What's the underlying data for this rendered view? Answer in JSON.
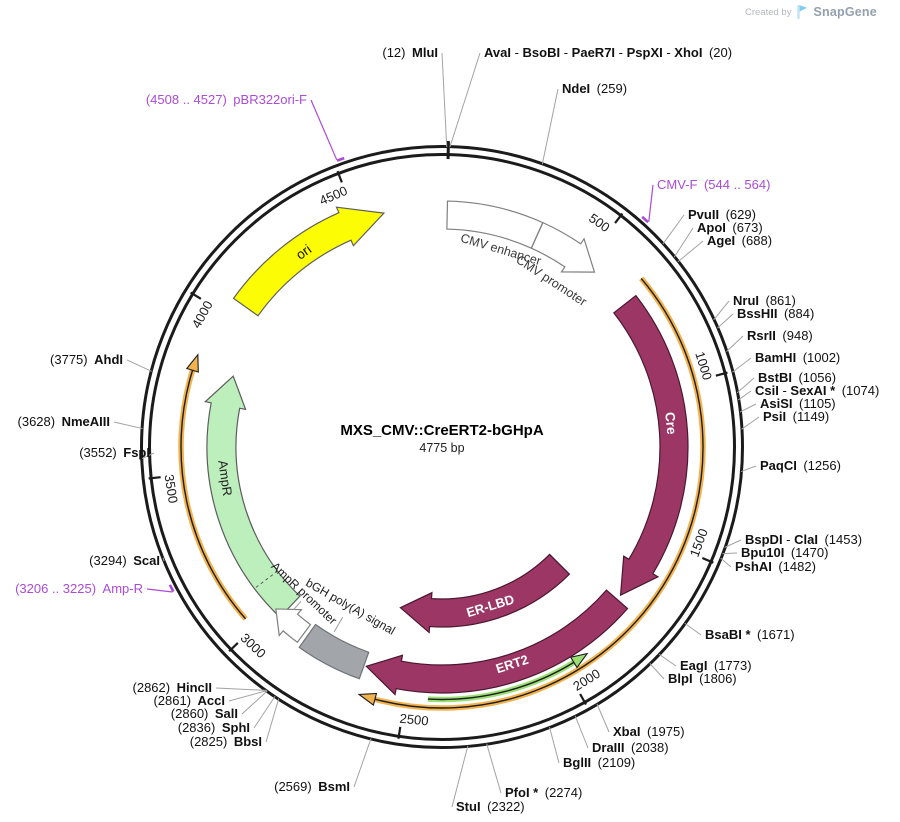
{
  "watermark": {
    "created_by": "Created by",
    "brand": "SnapGene"
  },
  "plasmid": {
    "name": "MXS_CMV::CreERT2-bGHpA",
    "size_label": "4775 bp"
  },
  "chart_data": {
    "type": "plasmid_map",
    "title": "MXS_CMV::CreERT2-bGHpA",
    "size_label": "4775 bp",
    "length_bp": 4775,
    "tick_interval": 500,
    "ticks": [
      500,
      1000,
      1500,
      2000,
      2500,
      3000,
      3500,
      4000,
      4500
    ],
    "colors": {
      "backbone": "#1b1b1b",
      "cds": "#9C3665",
      "cds_outline": "#4A1830",
      "ampr_fill": "#BDEFBD",
      "ori_fill": "#FCFC04",
      "polya_fill": "#A2A6AA",
      "white_feature": "#ffffff",
      "orf_orange": "#F2B24E",
      "orf_green": "#9BDF74",
      "primer_purple": "#AB4BD6",
      "leader_gray": "#a3a3a3"
    },
    "features": [
      {
        "id": "cmv-enhancer",
        "label": "CMV enhancer",
        "start": 17,
        "end": 321,
        "type": "enhancer",
        "fill": "#ffffff",
        "direction": "cw"
      },
      {
        "id": "cmv-promoter",
        "label": "CMV promoter",
        "start": 321,
        "end": 545,
        "type": "promoter",
        "fill": "#ffffff",
        "direction": "cw"
      },
      {
        "id": "cre",
        "label": "Cre",
        "start": 690,
        "end": 1720,
        "type": "CDS",
        "fill": "#9C3665",
        "direction": "cw"
      },
      {
        "id": "ert2",
        "label": "ERT2",
        "start": 1738,
        "end": 2640,
        "type": "CDS",
        "fill": "#9C3665",
        "direction": "cw"
      },
      {
        "id": "er-lbd",
        "label": "ER-LBD",
        "start": 1790,
        "end": 2580,
        "type": "domain",
        "fill": "#9C3665",
        "direction": "cw"
      },
      {
        "id": "bgh-polya",
        "label": "bGH poly(A) signal",
        "start": 2648,
        "end": 2858,
        "type": "polyA_signal",
        "fill": "#A2A6AA",
        "direction": "none"
      },
      {
        "id": "ampr-promoter",
        "label": "AmpR promoter",
        "start": 2872,
        "end": 2994,
        "type": "promoter",
        "fill": "#ffffff",
        "direction": "cw"
      },
      {
        "id": "ampr",
        "label": "AmpR",
        "start": 2966,
        "end": 3830,
        "type": "CDS",
        "fill": "#BDEFBD",
        "direction": "cw"
      },
      {
        "id": "ori",
        "label": "ori",
        "start": 4052,
        "end": 4590,
        "type": "rep_origin",
        "fill": "#FCFC04",
        "direction": "cw"
      }
    ],
    "orf_arrows": [
      {
        "start": 660,
        "end": 2585,
        "direction": "cw",
        "color": "#F2B24E"
      },
      {
        "start": 3035,
        "end": 3808,
        "direction": "cw",
        "color": "#F2B24E"
      },
      {
        "start": 1970,
        "end": 2430,
        "direction": "ccw",
        "color": "#9BDF74"
      }
    ],
    "primers": [
      {
        "name": "CMV-F",
        "start": 544,
        "end": 564,
        "range_label": "544 .. 564",
        "format": "name-first"
      },
      {
        "name": "Amp-R",
        "start": 3206,
        "end": 3225,
        "range_label": "3206 .. 3225",
        "format": "pos-first"
      },
      {
        "name": "pBR322ori-F",
        "start": 4508,
        "end": 4527,
        "range_label": "4508 .. 4527",
        "format": "pos-first"
      }
    ],
    "enzymes": [
      {
        "names": [
          "MluI"
        ],
        "pos": 12,
        "format": "pos-first"
      },
      {
        "names": [
          "AvaI",
          "BsoBI",
          "PaeR7I",
          "PspXI",
          "XhoI"
        ],
        "pos": 20,
        "format": "name-first"
      },
      {
        "names": [
          "NdeI"
        ],
        "pos": 259,
        "format": "name-first"
      },
      {
        "names": [
          "PvuII"
        ],
        "pos": 629,
        "format": "name-first"
      },
      {
        "names": [
          "ApoI"
        ],
        "pos": 673,
        "format": "name-first"
      },
      {
        "names": [
          "AgeI"
        ],
        "pos": 688,
        "format": "name-first"
      },
      {
        "names": [
          "NruI"
        ],
        "pos": 861,
        "format": "name-first"
      },
      {
        "names": [
          "BssHII"
        ],
        "pos": 884,
        "format": "name-first"
      },
      {
        "names": [
          "RsrII"
        ],
        "pos": 948,
        "format": "name-first"
      },
      {
        "names": [
          "BamHI"
        ],
        "pos": 1002,
        "format": "name-first"
      },
      {
        "names": [
          "BstBI"
        ],
        "pos": 1056,
        "format": "name-first"
      },
      {
        "names": [
          "CsiI",
          "SexAI *"
        ],
        "pos": 1074,
        "format": "name-first"
      },
      {
        "names": [
          "AsiSI"
        ],
        "pos": 1105,
        "format": "name-first"
      },
      {
        "names": [
          "PsiI"
        ],
        "pos": 1149,
        "format": "name-first"
      },
      {
        "names": [
          "PaqCI"
        ],
        "pos": 1256,
        "format": "name-first"
      },
      {
        "names": [
          "BspDI",
          "ClaI"
        ],
        "pos": 1453,
        "format": "name-first"
      },
      {
        "names": [
          "Bpu10I"
        ],
        "pos": 1470,
        "format": "name-first"
      },
      {
        "names": [
          "PshAI"
        ],
        "pos": 1482,
        "format": "name-first"
      },
      {
        "names": [
          "BsaBI *"
        ],
        "pos": 1671,
        "format": "name-first"
      },
      {
        "names": [
          "EagI"
        ],
        "pos": 1773,
        "format": "name-first"
      },
      {
        "names": [
          "BlpI"
        ],
        "pos": 1806,
        "format": "name-first"
      },
      {
        "names": [
          "XbaI"
        ],
        "pos": 1975,
        "format": "name-first"
      },
      {
        "names": [
          "DraIII"
        ],
        "pos": 2038,
        "format": "name-first"
      },
      {
        "names": [
          "BglII"
        ],
        "pos": 2109,
        "format": "name-first"
      },
      {
        "names": [
          "PfoI *"
        ],
        "pos": 2274,
        "format": "name-first"
      },
      {
        "names": [
          "StuI"
        ],
        "pos": 2322,
        "format": "name-first"
      },
      {
        "names": [
          "BsmI"
        ],
        "pos": 2569,
        "format": "pos-first"
      },
      {
        "names": [
          "BbsI"
        ],
        "pos": 2825,
        "format": "pos-first"
      },
      {
        "names": [
          "SphI"
        ],
        "pos": 2836,
        "format": "pos-first"
      },
      {
        "names": [
          "SalI"
        ],
        "pos": 2860,
        "format": "pos-first"
      },
      {
        "names": [
          "AccI"
        ],
        "pos": 2861,
        "format": "pos-first"
      },
      {
        "names": [
          "HincII"
        ],
        "pos": 2862,
        "format": "pos-first"
      },
      {
        "names": [
          "ScaI"
        ],
        "pos": 3294,
        "format": "pos-first"
      },
      {
        "names": [
          "FspI"
        ],
        "pos": 3552,
        "format": "pos-first"
      },
      {
        "names": [
          "NmeAIII"
        ],
        "pos": 3628,
        "format": "pos-first"
      },
      {
        "names": [
          "AhdI"
        ],
        "pos": 3775,
        "format": "pos-first"
      }
    ]
  }
}
